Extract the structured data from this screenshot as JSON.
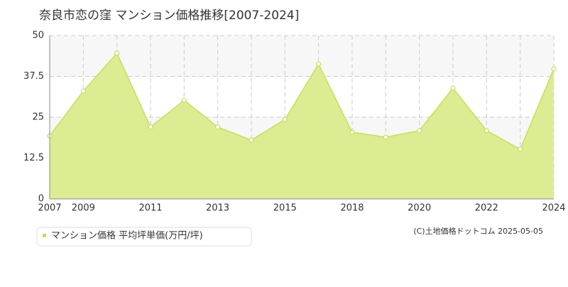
{
  "chart_data": {
    "type": "area",
    "title": "奈良市恋の窪 マンション価格推移[2007-2024]",
    "categories": [
      "2007",
      "2009",
      null,
      "2011",
      null,
      "2013",
      null,
      "2015",
      null,
      "2018",
      null,
      "2020",
      null,
      "2022",
      null,
      "2024"
    ],
    "series": [
      {
        "name": "マンション価格 平均坪単価(万円/坪)",
        "color": "#c5e05a",
        "fill": "#dcec92",
        "values": [
          19.3,
          33,
          44.6,
          22,
          30.2,
          22,
          18,
          24.3,
          41.3,
          20.4,
          18.9,
          20.9,
          33.9,
          20.9,
          15.2,
          39.8
        ]
      }
    ],
    "ylim": [
      0,
      50
    ],
    "yticks": [
      0,
      12.5,
      25,
      37.5,
      50
    ],
    "grid": true,
    "source": "(C)土地価格ドットコム 2025-05-05"
  }
}
